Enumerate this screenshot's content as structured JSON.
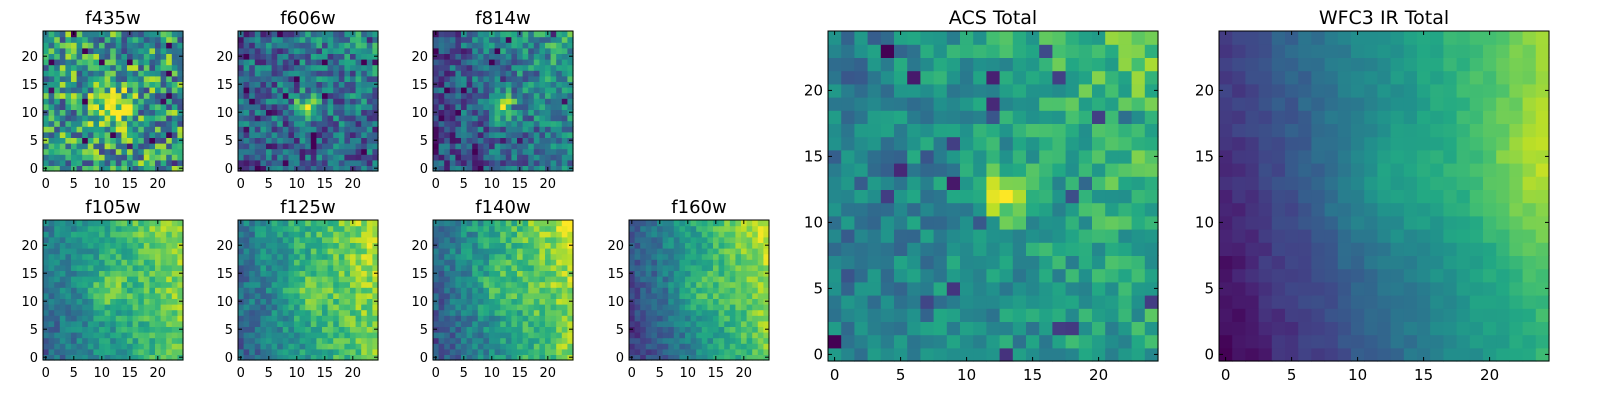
{
  "chart_data": [
    {
      "type": "heatmap",
      "title": "f435w",
      "xticks": [
        "0",
        "5",
        "10",
        "15",
        "20"
      ],
      "yticks": [
        "0",
        "5",
        "10",
        "15",
        "20"
      ],
      "xlim": [
        0,
        25
      ],
      "ylim": [
        0,
        25
      ],
      "colormap": "viridis",
      "pattern": "noisy, weak central source near (12,11)"
    },
    {
      "type": "heatmap",
      "title": "f606w",
      "xticks": [
        "0",
        "5",
        "10",
        "15",
        "20"
      ],
      "yticks": [
        "0",
        "5",
        "10",
        "15",
        "20"
      ],
      "xlim": [
        0,
        25
      ],
      "ylim": [
        0,
        25
      ],
      "colormap": "viridis",
      "pattern": "bright compact source near (12,11), noisy background"
    },
    {
      "type": "heatmap",
      "title": "f814w",
      "xticks": [
        "0",
        "5",
        "10",
        "15",
        "20"
      ],
      "yticks": [
        "0",
        "5",
        "10",
        "15",
        "20"
      ],
      "xlim": [
        0,
        25
      ],
      "ylim": [
        0,
        25
      ],
      "colormap": "viridis",
      "pattern": "compact source near (12,11), brighter upper-right"
    },
    {
      "type": "heatmap",
      "title": "f105w",
      "xticks": [
        "0",
        "5",
        "10",
        "15",
        "20"
      ],
      "yticks": [
        "0",
        "5",
        "10",
        "15",
        "20"
      ],
      "xlim": [
        0,
        25
      ],
      "ylim": [
        0,
        25
      ],
      "colormap": "viridis",
      "pattern": "smooth gradient brighter to right, source near (11,12)"
    },
    {
      "type": "heatmap",
      "title": "f125w",
      "xticks": [
        "0",
        "5",
        "10",
        "15",
        "20"
      ],
      "yticks": [
        "0",
        "5",
        "10",
        "15",
        "20"
      ],
      "xlim": [
        0,
        25
      ],
      "ylim": [
        0,
        25
      ],
      "colormap": "viridis",
      "pattern": "smooth gradient brighter to right"
    },
    {
      "type": "heatmap",
      "title": "f140w",
      "xticks": [
        "0",
        "5",
        "10",
        "15",
        "20"
      ],
      "yticks": [
        "0",
        "5",
        "10",
        "15",
        "20"
      ],
      "xlim": [
        0,
        25
      ],
      "ylim": [
        0,
        25
      ],
      "colormap": "viridis",
      "pattern": "smooth gradient brighter to right"
    },
    {
      "type": "heatmap",
      "title": "f160w",
      "xticks": [
        "0",
        "5",
        "10",
        "15",
        "20"
      ],
      "yticks": [
        "0",
        "5",
        "10",
        "15",
        "20"
      ],
      "xlim": [
        0,
        25
      ],
      "ylim": [
        0,
        25
      ],
      "colormap": "viridis",
      "pattern": "smooth gradient brighter to right, dark lower-left"
    },
    {
      "type": "heatmap",
      "title": "ACS Total",
      "xticks": [
        "0",
        "5",
        "10",
        "15",
        "20"
      ],
      "yticks": [
        "0",
        "5",
        "10",
        "15",
        "20"
      ],
      "xlim": [
        0,
        25
      ],
      "ylim": [
        0,
        25
      ],
      "colormap": "viridis",
      "pattern": "bright source at (12-13, 11-13), brighter upper-right"
    },
    {
      "type": "heatmap",
      "title": "WFC3 IR Total",
      "xticks": [
        "0",
        "5",
        "10",
        "15",
        "20"
      ],
      "yticks": [
        "0",
        "5",
        "10",
        "15",
        "20"
      ],
      "xlim": [
        0,
        25
      ],
      "ylim": [
        0,
        25
      ],
      "colormap": "viridis",
      "pattern": "smooth gradient, brightest at right edge (24,14), dark left columns"
    }
  ]
}
